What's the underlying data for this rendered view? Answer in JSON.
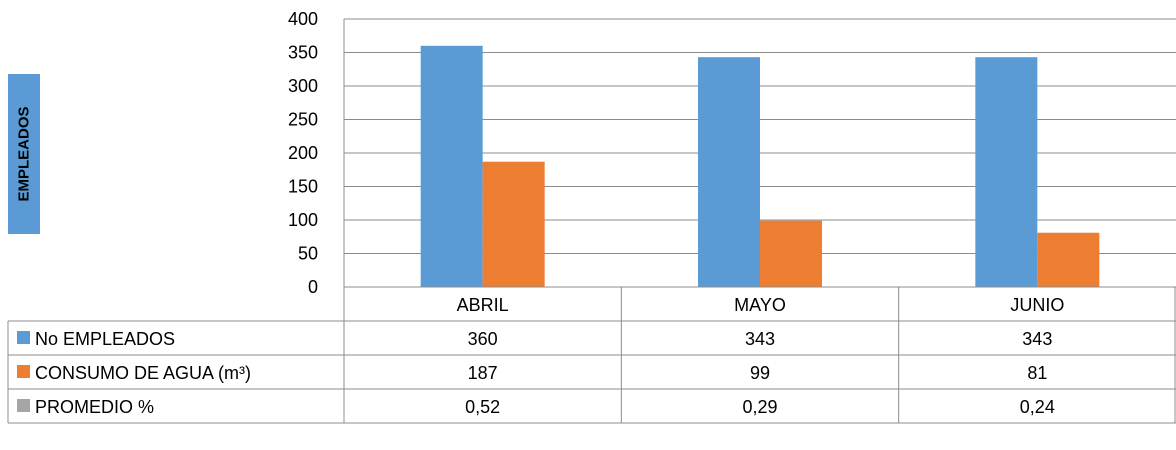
{
  "chart_data": {
    "type": "bar",
    "categories": [
      "ABRIL",
      "MAYO",
      "JUNIO"
    ],
    "ylabel": "EMPLEADOS",
    "ylim": [
      0,
      400
    ],
    "yticks": [
      0,
      50,
      100,
      150,
      200,
      250,
      300,
      350,
      400
    ],
    "grid": true,
    "series": [
      {
        "name": "No EMPLEADOS",
        "color": "#5b9bd5",
        "values": [
          360,
          343,
          343
        ],
        "display": [
          "360",
          "343",
          "343"
        ],
        "plotted": true
      },
      {
        "name": "CONSUMO DE AGUA  (m³)",
        "color": "#ed7d31",
        "values": [
          187,
          99,
          81
        ],
        "display": [
          "187",
          "99",
          "81"
        ],
        "plotted": true
      },
      {
        "name": "PROMEDIO %",
        "color": "#a5a5a5",
        "values": [
          0.52,
          0.29,
          0.24
        ],
        "display": [
          "0,52",
          "0,29",
          "0,24"
        ],
        "plotted": false
      }
    ],
    "legend": "data-table"
  }
}
